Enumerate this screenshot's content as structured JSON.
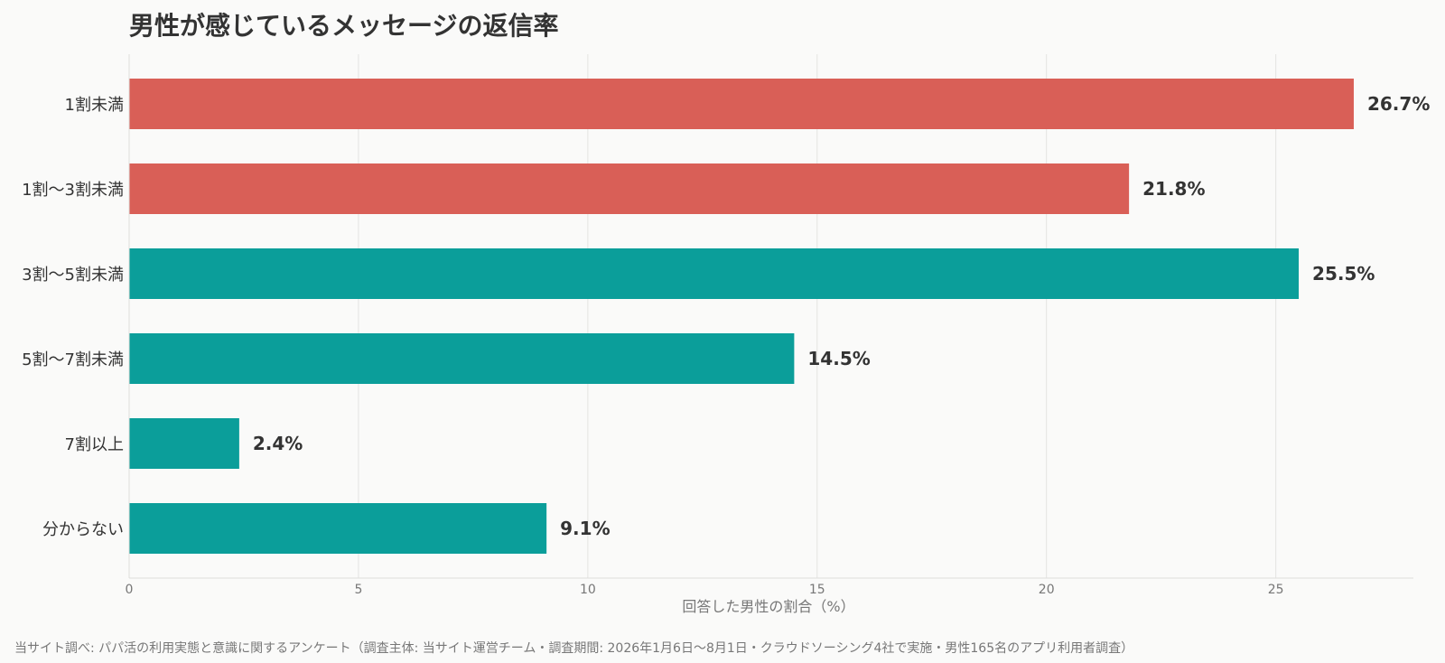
{
  "chart_data": {
    "type": "bar",
    "orientation": "horizontal",
    "title": "男性が感じているメッセージの返信率",
    "xlabel": "回答した男性の割合（%）",
    "ylabel": "",
    "categories": [
      "1割未満",
      "1割〜3割未満",
      "3割〜5割未満",
      "5割〜7割未満",
      "7割以上",
      "分からない"
    ],
    "values": [
      26.7,
      21.8,
      25.5,
      14.5,
      2.4,
      9.1
    ],
    "value_labels": [
      "26.7%",
      "21.8%",
      "25.5%",
      "14.5%",
      "2.4%",
      "9.1%"
    ],
    "bar_colors": [
      "#d95f57",
      "#d95f57",
      "#0b9e9a",
      "#0b9e9a",
      "#0b9e9a",
      "#0b9e9a"
    ],
    "xlim": [
      0,
      28
    ],
    "xticks": [
      0,
      5,
      10,
      15,
      20,
      25
    ],
    "grid": true,
    "legend": "none",
    "source": "当サイト調べ: パパ活の利用実態と意識に関するアンケート（調査主体: 当サイト運営チーム・調査期間: 2026年1月6日〜8月1日・クラウドソーシング4社で実施・男性165名のアプリ利用者調査）"
  }
}
